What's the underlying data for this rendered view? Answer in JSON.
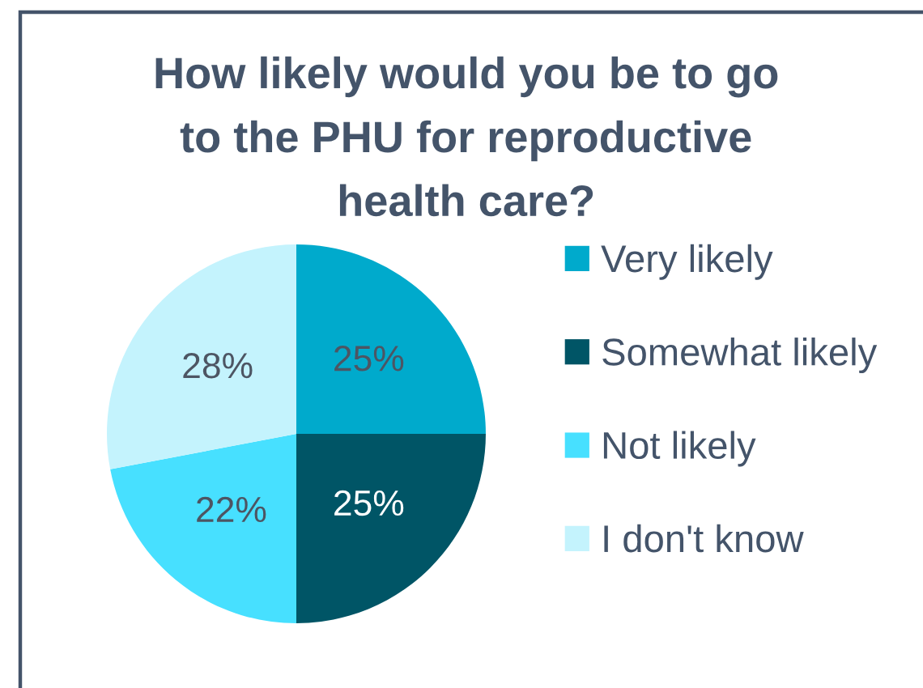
{
  "chart_data": {
    "type": "pie",
    "title": "How likely would you be to go\nto the PHU for reproductive\nhealth care?",
    "categories": [
      "Very likely",
      "Somewhat likely",
      "Not likely",
      "I don't know"
    ],
    "values": [
      25,
      25,
      22,
      28
    ],
    "colors": [
      "#00aacc",
      "#005566",
      "#47e0ff",
      "#c4f3fd"
    ],
    "value_labels": [
      "25%",
      "25%",
      "22%",
      "28%"
    ],
    "legend": "right"
  }
}
